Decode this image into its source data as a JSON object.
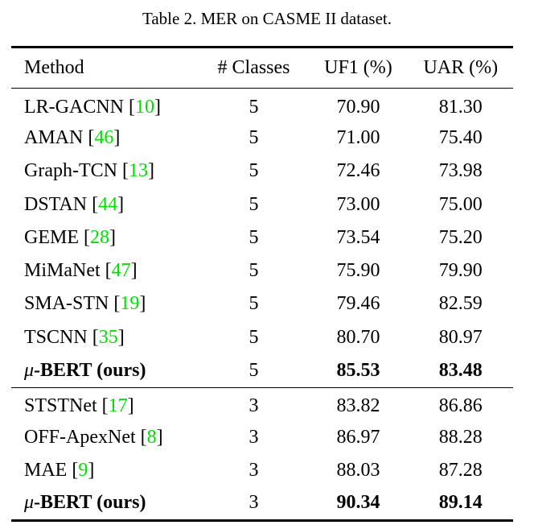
{
  "caption": "Table 2. MER on CASME II dataset.",
  "headers": {
    "method": "Method",
    "classes": "# Classes",
    "uf1": "UF1 (%)",
    "uar": "UAR (%)"
  },
  "group_a": [
    {
      "method": "LR-GACNN",
      "ref": "10",
      "classes": "5",
      "uf1": "70.90",
      "uar": "81.30"
    },
    {
      "method": "AMAN",
      "ref": "46",
      "classes": "5",
      "uf1": "71.00",
      "uar": "75.40"
    },
    {
      "method": "Graph-TCN",
      "ref": "13",
      "classes": "5",
      "uf1": "72.46",
      "uar": "73.98"
    },
    {
      "method": "DSTAN",
      "ref": "44",
      "classes": "5",
      "uf1": "73.00",
      "uar": "75.00"
    },
    {
      "method": "GEME",
      "ref": "28",
      "classes": "5",
      "uf1": "73.54",
      "uar": "75.20"
    },
    {
      "method": "MiMaNet",
      "ref": "47",
      "classes": "5",
      "uf1": "75.90",
      "uar": "79.90"
    },
    {
      "method": "SMA-STN",
      "ref": "19",
      "classes": "5",
      "uf1": "79.46",
      "uar": "82.59"
    },
    {
      "method": "TSCNN",
      "ref": "35",
      "classes": "5",
      "uf1": "80.70",
      "uar": "80.97"
    },
    {
      "mu": "μ",
      "method": "-BERT (ours)",
      "classes": "5",
      "uf1": "85.53",
      "uar": "83.48"
    }
  ],
  "group_b": [
    {
      "method": "STSTNet",
      "ref": "17",
      "classes": "3",
      "uf1": "83.82",
      "uar": "86.86"
    },
    {
      "method": "OFF-ApexNet",
      "ref": "8",
      "classes": "3",
      "uf1": "86.97",
      "uar": "88.28"
    },
    {
      "method": "MAE",
      "ref": "9",
      "classes": "3",
      "uf1": "88.03",
      "uar": "87.28"
    },
    {
      "mu": "μ",
      "method": "-BERT (ours)",
      "classes": "3",
      "uf1": "90.34",
      "uar": "89.14"
    }
  ]
}
